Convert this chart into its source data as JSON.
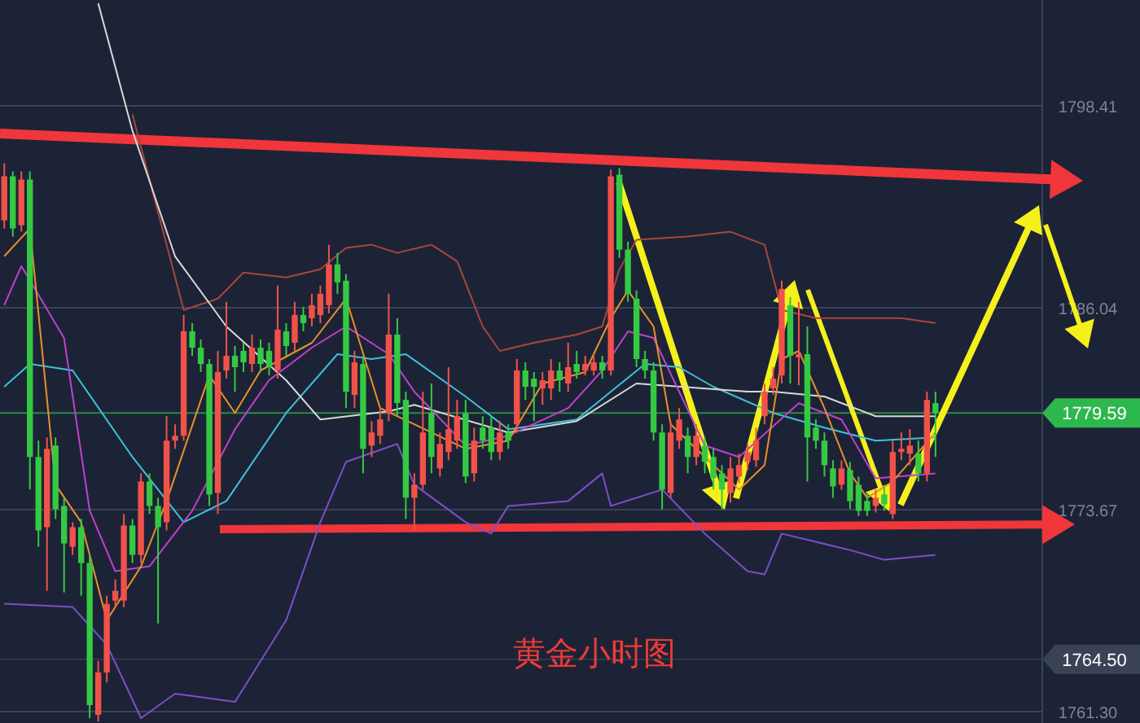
{
  "chart_data": {
    "type": "candlestick",
    "title": "黄金小时图",
    "categories": [
      null,
      null,
      null,
      null,
      null,
      null,
      null,
      null,
      null,
      null,
      null,
      null,
      null,
      null,
      null,
      null,
      null,
      null,
      null,
      null,
      null,
      null,
      null,
      null,
      null,
      null,
      null,
      null,
      null,
      null,
      null,
      null,
      null,
      null,
      null,
      null,
      null,
      null,
      null,
      null,
      null,
      null,
      null,
      null,
      null,
      null,
      null,
      null,
      null,
      null,
      null,
      null,
      null,
      null,
      null,
      null,
      null,
      null,
      null,
      null,
      null,
      null,
      null,
      null,
      null,
      null,
      null,
      null,
      null,
      null,
      null,
      null,
      null,
      null,
      null,
      null,
      null,
      null,
      null,
      null,
      null,
      null,
      null,
      null,
      null,
      null,
      null,
      null,
      null,
      null,
      null,
      null,
      null,
      null,
      null,
      null,
      null,
      null,
      null,
      null,
      null,
      null,
      null,
      null,
      null,
      null,
      null,
      null,
      null,
      null,
      null,
      null,
      null,
      null,
      null,
      null,
      null,
      null,
      null,
      null,
      null,
      null
    ],
    "ohlc": [
      [
        1791.4,
        1794.9,
        1790.9,
        1794.1
      ],
      [
        1794.1,
        1794.4,
        1790.4,
        1790.9
      ],
      [
        1791.1,
        1794.4,
        1790.7,
        1793.9
      ],
      [
        1793.9,
        1794.4,
        1774.9,
        1776.9
      ],
      [
        1776.9,
        1777.9,
        1771.4,
        1772.4
      ],
      [
        1772.6,
        1778.1,
        1768.7,
        1777.4
      ],
      [
        1777.6,
        1778.1,
        1773.1,
        1773.7
      ],
      [
        1773.9,
        1774.4,
        1768.6,
        1771.6
      ],
      [
        1771.4,
        1772.9,
        1770.9,
        1772.6
      ],
      [
        1772.6,
        1773.1,
        1768.4,
        1770.4
      ],
      [
        1770.4,
        1770.9,
        1760.9,
        1761.7
      ],
      [
        1761.1,
        1764.4,
        1760.7,
        1763.7
      ],
      [
        1763.7,
        1768.4,
        1763.1,
        1767.9
      ],
      [
        1768.1,
        1769.4,
        1767.7,
        1768.7
      ],
      [
        1768.1,
        1773.4,
        1767.7,
        1772.7
      ],
      [
        1772.7,
        1773.1,
        1770.4,
        1770.9
      ],
      [
        1770.9,
        1775.9,
        1770.4,
        1775.4
      ],
      [
        1775.4,
        1775.9,
        1773.4,
        1773.9
      ],
      [
        1773.9,
        1774.4,
        1766.7,
        1772.6
      ],
      [
        1772.9,
        1779.4,
        1772.4,
        1777.9
      ],
      [
        1777.9,
        1778.9,
        1777.4,
        1778.2
      ],
      [
        1778.2,
        1785.6,
        1777.9,
        1784.6
      ],
      [
        1784.6,
        1785.1,
        1783.1,
        1783.6
      ],
      [
        1783.6,
        1784.1,
        1782.1,
        1782.6
      ],
      [
        1782.6,
        1782.9,
        1773.9,
        1774.6
      ],
      [
        1774.7,
        1783.4,
        1773.4,
        1782.1
      ],
      [
        1782.2,
        1786.4,
        1781.7,
        1783.1
      ],
      [
        1783.1,
        1783.7,
        1780.9,
        1782.4
      ],
      [
        1783.4,
        1783.9,
        1782.1,
        1782.7
      ],
      [
        1782.6,
        1784.4,
        1782.1,
        1783.6
      ],
      [
        1783.6,
        1784.1,
        1782.1,
        1782.6
      ],
      [
        1783.4,
        1783.9,
        1781.9,
        1782.4
      ],
      [
        1782.2,
        1787.4,
        1781.7,
        1784.7
      ],
      [
        1784.6,
        1785.1,
        1783.1,
        1783.7
      ],
      [
        1783.9,
        1786.4,
        1783.4,
        1785.6
      ],
      [
        1785.6,
        1786.1,
        1784.6,
        1785.1
      ],
      [
        1785.4,
        1786.9,
        1784.9,
        1786.2
      ],
      [
        1785.6,
        1787.4,
        1785.1,
        1786.9
      ],
      [
        1786.2,
        1789.9,
        1785.7,
        1788.7
      ],
      [
        1788.7,
        1789.4,
        1786.9,
        1787.6
      ],
      [
        1787.7,
        1788.1,
        1779.9,
        1780.9
      ],
      [
        1780.7,
        1783.4,
        1779.9,
        1782.7
      ],
      [
        1782.6,
        1783.1,
        1775.9,
        1777.4
      ],
      [
        1777.6,
        1779.1,
        1776.9,
        1778.4
      ],
      [
        1778.2,
        1779.9,
        1777.7,
        1779.2
      ],
      [
        1779.6,
        1786.9,
        1779.1,
        1784.4
      ],
      [
        1784.4,
        1785.4,
        1779.4,
        1780.2
      ],
      [
        1780.4,
        1780.9,
        1773.1,
        1774.4
      ],
      [
        1774.4,
        1775.9,
        1772.4,
        1775.2
      ],
      [
        1775.2,
        1780.9,
        1774.9,
        1778.4
      ],
      [
        1779.6,
        1781.4,
        1775.9,
        1776.9
      ],
      [
        1776.2,
        1778.4,
        1775.7,
        1777.7
      ],
      [
        1777.2,
        1782.4,
        1776.7,
        1778.6
      ],
      [
        1777.9,
        1780.4,
        1777.4,
        1779.4
      ],
      [
        1779.6,
        1780.4,
        1775.3,
        1775.7
      ],
      [
        1775.9,
        1778.7,
        1775.4,
        1777.9
      ],
      [
        1778.7,
        1779.4,
        1777.4,
        1777.9
      ],
      [
        1778.7,
        1779.4,
        1776.7,
        1777.2
      ],
      [
        1777.2,
        1779.1,
        1776.7,
        1778.4
      ],
      [
        1778.4,
        1778.9,
        1777.4,
        1777.9
      ],
      [
        1778.9,
        1782.9,
        1778.4,
        1782.2
      ],
      [
        1782.2,
        1782.7,
        1780.4,
        1781.2
      ],
      [
        1781.7,
        1782.1,
        1779.1,
        1781.2
      ],
      [
        1781.1,
        1782.1,
        1780.1,
        1781.6
      ],
      [
        1781.1,
        1782.9,
        1780.4,
        1782.2
      ],
      [
        1782.2,
        1782.7,
        1780.9,
        1781.6
      ],
      [
        1781.4,
        1783.9,
        1780.9,
        1782.4
      ],
      [
        1782.6,
        1783.4,
        1781.7,
        1782.1
      ],
      [
        1782.2,
        1783.1,
        1781.9,
        1782.6
      ],
      [
        1782.2,
        1783.1,
        1781.9,
        1782.7
      ],
      [
        1782.7,
        1783.1,
        1781.7,
        1782.2
      ],
      [
        1782.2,
        1794.5,
        1781.9,
        1794.1
      ],
      [
        1794.2,
        1794.6,
        1789.1,
        1789.6
      ],
      [
        1789.6,
        1790.1,
        1786.4,
        1786.9
      ],
      [
        1786.6,
        1787.1,
        1782.4,
        1782.9
      ],
      [
        1782.9,
        1783.4,
        1781.7,
        1782.2
      ],
      [
        1782.2,
        1782.7,
        1777.9,
        1778.4
      ],
      [
        1778.4,
        1778.9,
        1773.7,
        1774.9
      ],
      [
        1774.7,
        1779.1,
        1774.4,
        1778.4
      ],
      [
        1777.9,
        1779.9,
        1777.4,
        1779.2
      ],
      [
        1778.2,
        1778.7,
        1775.9,
        1776.9
      ],
      [
        1776.9,
        1778.9,
        1776.4,
        1778.2
      ],
      [
        1777.6,
        1778.1,
        1775.9,
        1776.6
      ],
      [
        1776.9,
        1777.4,
        1774.9,
        1775.6
      ],
      [
        1775.9,
        1776.4,
        1773.7,
        1774.9
      ],
      [
        1774.7,
        1776.9,
        1774.1,
        1776.2
      ],
      [
        1775.7,
        1777.1,
        1775.3,
        1776.4
      ],
      [
        1776.6,
        1777.7,
        1776.1,
        1777.2
      ],
      [
        1776.7,
        1778.7,
        1776.3,
        1777.9
      ],
      [
        1779.4,
        1781.4,
        1778.9,
        1780.9
      ],
      [
        1781.1,
        1782.4,
        1780.7,
        1781.7
      ],
      [
        1781.9,
        1787.7,
        1781.4,
        1787.2
      ],
      [
        1786.2,
        1786.7,
        1781.4,
        1783.1
      ],
      [
        1783.0,
        1786.4,
        1781.3,
        1783.2
      ],
      [
        1783.2,
        1784.9,
        1775.4,
        1778.1
      ],
      [
        1778.7,
        1779.2,
        1777.4,
        1777.9
      ],
      [
        1777.9,
        1778.4,
        1775.7,
        1776.4
      ],
      [
        1776.2,
        1776.7,
        1774.4,
        1775.1
      ],
      [
        1775.2,
        1776.7,
        1774.9,
        1776.2
      ],
      [
        1776.1,
        1776.6,
        1773.7,
        1774.2
      ],
      [
        1775.2,
        1775.7,
        1773.3,
        1773.6
      ],
      [
        1774.2,
        1774.7,
        1773.3,
        1773.6
      ],
      [
        1773.9,
        1774.9,
        1773.5,
        1774.4
      ],
      [
        1774.6,
        1775.1,
        1773.6,
        1774.0
      ],
      [
        1773.4,
        1777.9,
        1773.1,
        1777.2
      ],
      [
        1777.2,
        1778.4,
        1776.7,
        1777.4
      ],
      [
        1777.1,
        1778.6,
        1776.4,
        1777.6
      ],
      [
        1777.1,
        1777.9,
        1775.4,
        1775.9
      ],
      [
        1775.9,
        1780.9,
        1775.4,
        1780.4
      ],
      [
        1780.2,
        1780.9,
        1776.9,
        1779.59
      ],
      null,
      null,
      null,
      null,
      null,
      null,
      null,
      null,
      null,
      null,
      null,
      null
    ],
    "series": [
      {
        "type": "line",
        "color": "#a8463e",
        "values": [
          null,
          null,
          null,
          null,
          null,
          null,
          null,
          null,
          null,
          null,
          null,
          null,
          null,
          null,
          null,
          1797.9,
          null,
          null,
          null,
          1789.9,
          null,
          1785.9,
          null,
          null,
          null,
          1786.6,
          null,
          null,
          1788.2,
          null,
          null,
          null,
          null,
          1787.9,
          null,
          null,
          null,
          1788.4,
          null,
          null,
          1789.7,
          null,
          null,
          1789.9,
          null,
          null,
          1789.4,
          null,
          null,
          null,
          1789.9,
          null,
          null,
          1788.9,
          null,
          null,
          1784.9,
          null,
          1783.4,
          null,
          null,
          null,
          1783.9,
          null,
          null,
          null,
          null,
          1784.4,
          null,
          null,
          1784.9,
          null,
          1788.4,
          null,
          1790.2,
          null,
          null,
          null,
          null,
          null,
          1790.4,
          null,
          null,
          null,
          null,
          1790.7,
          null,
          null,
          null,
          1789.9,
          null,
          1785.9,
          null,
          null,
          null,
          1785.4,
          null,
          null,
          null,
          null,
          null,
          null,
          null,
          null,
          null,
          1785.4,
          null,
          null,
          null,
          1785.1,
          null,
          null,
          null,
          null,
          null,
          null,
          null,
          null,
          null,
          null,
          null,
          null
        ]
      },
      {
        "type": "line",
        "color": "#7b4fc8",
        "values": [
          1767.9,
          null,
          null,
          null,
          null,
          null,
          null,
          null,
          1767.7,
          null,
          null,
          null,
          1765.4,
          null,
          null,
          null,
          1760.9,
          null,
          null,
          null,
          1762.4,
          null,
          null,
          null,
          null,
          null,
          null,
          1761.9,
          null,
          null,
          null,
          null,
          null,
          1766.9,
          null,
          null,
          null,
          1772.9,
          null,
          null,
          1776.6,
          null,
          null,
          null,
          null,
          null,
          1777.7,
          null,
          1775.2,
          null,
          null,
          null,
          null,
          null,
          1772.9,
          null,
          null,
          1772.2,
          null,
          1773.9,
          null,
          null,
          null,
          null,
          null,
          null,
          1774.2,
          null,
          null,
          null,
          1775.9,
          1773.9,
          null,
          null,
          null,
          null,
          null,
          1774.9,
          null,
          null,
          null,
          null,
          1772.2,
          null,
          null,
          null,
          null,
          1769.9,
          null,
          1769.7,
          null,
          1772.2,
          null,
          null,
          null,
          null,
          null,
          null,
          null,
          1771.2,
          null,
          null,
          null,
          1770.6,
          null,
          null,
          null,
          null,
          null,
          1770.9,
          null,
          null,
          null,
          null,
          null,
          null,
          null,
          null,
          null,
          null,
          null,
          null
        ]
      },
      {
        "type": "line",
        "color": "#3fc1d9",
        "values": [
          1781.2,
          null,
          null,
          1782.6,
          null,
          null,
          null,
          null,
          1782.2,
          null,
          null,
          null,
          null,
          null,
          null,
          1776.9,
          null,
          null,
          null,
          null,
          null,
          1772.9,
          null,
          null,
          null,
          null,
          1774.2,
          null,
          null,
          null,
          null,
          null,
          null,
          1779.6,
          null,
          null,
          null,
          null,
          null,
          1783.2,
          null,
          null,
          null,
          1782.9,
          null,
          null,
          null,
          1783.2,
          null,
          null,
          null,
          null,
          null,
          null,
          1780.6,
          null,
          null,
          null,
          null,
          1778.6,
          null,
          null,
          null,
          null,
          null,
          null,
          null,
          1779.2,
          null,
          null,
          null,
          1780.9,
          null,
          null,
          null,
          1782.6,
          null,
          null,
          null,
          1782.4,
          null,
          null,
          null,
          1781.2,
          null,
          null,
          null,
          null,
          null,
          null,
          1779.6,
          null,
          null,
          null,
          null,
          null,
          1778.7,
          null,
          null,
          null,
          null,
          null,
          1777.9,
          null,
          null,
          null,
          null,
          null,
          null,
          1778.1,
          null,
          null,
          null,
          null,
          null,
          null,
          null,
          null,
          null,
          null,
          null,
          null
        ]
      },
      {
        "type": "line",
        "color": "#d8d8d8",
        "values": [
          null,
          null,
          null,
          null,
          null,
          null,
          null,
          null,
          null,
          null,
          null,
          1804.7,
          null,
          null,
          null,
          1796.9,
          null,
          null,
          null,
          null,
          1789.2,
          null,
          null,
          null,
          null,
          null,
          1784.9,
          null,
          null,
          null,
          null,
          null,
          null,
          1781.6,
          null,
          null,
          null,
          1779.2,
          null,
          null,
          null,
          null,
          null,
          null,
          null,
          1779.7,
          null,
          null,
          1780.1,
          null,
          null,
          null,
          null,
          null,
          null,
          null,
          null,
          null,
          null,
          1778.4,
          null,
          null,
          null,
          null,
          null,
          null,
          null,
          1779.1,
          null,
          null,
          null,
          null,
          null,
          null,
          1781.4,
          null,
          null,
          null,
          null,
          null,
          null,
          null,
          null,
          null,
          null,
          null,
          null,
          1780.9,
          null,
          null,
          1780.9,
          null,
          null,
          null,
          null,
          null,
          1780.6,
          null,
          null,
          null,
          null,
          null,
          1779.4,
          null,
          null,
          null,
          null,
          null,
          null,
          1779.4,
          null,
          null,
          null,
          null,
          null,
          null,
          null,
          null,
          null,
          null,
          null,
          null
        ]
      },
      {
        "type": "line",
        "color": "#c040d0",
        "values": [
          1786.2,
          null,
          1788.6,
          null,
          null,
          null,
          null,
          1784.2,
          null,
          null,
          1773.6,
          null,
          null,
          1769.9,
          null,
          null,
          null,
          1770.2,
          null,
          null,
          null,
          null,
          1773.6,
          null,
          null,
          null,
          null,
          1778.6,
          null,
          null,
          null,
          1781.6,
          null,
          null,
          null,
          null,
          1783.6,
          null,
          null,
          null,
          1784.9,
          null,
          null,
          null,
          null,
          1783.2,
          null,
          null,
          1780.9,
          null,
          null,
          null,
          null,
          null,
          1777.6,
          null,
          null,
          null,
          null,
          1778.2,
          null,
          null,
          null,
          null,
          null,
          null,
          1779.9,
          null,
          null,
          null,
          1782.2,
          null,
          null,
          1784.6,
          null,
          null,
          1784.2,
          null,
          null,
          null,
          null,
          null,
          1777.6,
          null,
          null,
          null,
          1776.9,
          null,
          null,
          null,
          null,
          null,
          null,
          1780.2,
          null,
          null,
          null,
          null,
          1779.2,
          null,
          null,
          null,
          1775.6,
          null,
          null,
          null,
          null,
          null,
          null,
          1775.9,
          null,
          null,
          null,
          null,
          null,
          null,
          null,
          null,
          null,
          null,
          null,
          null
        ]
      },
      {
        "type": "line",
        "color": "#e8912a",
        "values": [
          1789.2,
          null,
          null,
          1790.9,
          null,
          null,
          1775.2,
          null,
          null,
          1772.9,
          null,
          null,
          1766.9,
          null,
          null,
          null,
          1770.2,
          null,
          null,
          1774.2,
          null,
          null,
          null,
          null,
          1781.9,
          null,
          null,
          1779.6,
          null,
          null,
          1782.2,
          null,
          null,
          null,
          null,
          null,
          1783.9,
          null,
          null,
          null,
          1786.6,
          null,
          null,
          null,
          1779.9,
          null,
          null,
          null,
          1778.9,
          null,
          null,
          null,
          null,
          null,
          1777.4,
          null,
          null,
          null,
          null,
          1777.9,
          null,
          null,
          null,
          1781.4,
          null,
          null,
          null,
          null,
          1782.1,
          null,
          null,
          1785.4,
          null,
          1787.1,
          null,
          null,
          1784.9,
          null,
          1778.9,
          null,
          null,
          null,
          1776.9,
          null,
          null,
          null,
          1774.9,
          null,
          null,
          1776.4,
          null,
          1782.9,
          null,
          1783.4,
          null,
          null,
          1779.9,
          null,
          null,
          1775.9,
          null,
          1774.4,
          null,
          null,
          1775.4,
          null,
          null,
          null,
          null,
          1778.4,
          null,
          null,
          null,
          null,
          null,
          null,
          null,
          null,
          null,
          null,
          null,
          null
        ]
      }
    ],
    "ylim": [
      1760.6,
      1804.9
    ],
    "yticks": [
      1798.41,
      1786.04,
      1773.67,
      {
        "value": 1761.3,
        "label": "1761.30"
      }
    ],
    "grid": "y",
    "ref_lines": [
      {
        "axis": "y",
        "value": 1779.59,
        "label": "1779.59",
        "color": "#2db84d"
      },
      {
        "axis": "y",
        "value": 1764.5,
        "label": "1764.50",
        "color": "#3a4256"
      }
    ]
  }
}
